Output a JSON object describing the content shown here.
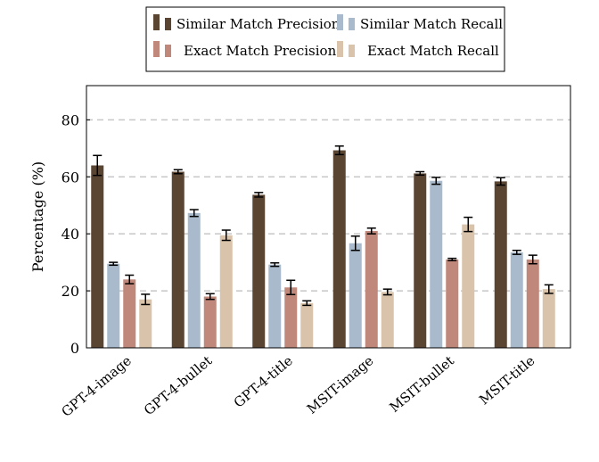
{
  "chart_data": {
    "type": "bar",
    "title": "",
    "xlabel": "",
    "ylabel": "Percentage (%)",
    "ylim": [
      0,
      92
    ],
    "yticks": [
      0,
      20,
      40,
      60,
      80
    ],
    "grid": "horizontal dashed",
    "legend_placement": "top",
    "categories": [
      "GPT-4-image",
      "GPT-4-bullet",
      "GPT-4-title",
      "MSIT-image",
      "MSIT-bullet",
      "MSIT-title"
    ],
    "series": [
      {
        "name": "Similar Match Precision",
        "color": "#5a4533",
        "values": [
          64.0,
          61.8,
          53.7,
          69.3,
          61.2,
          58.4
        ],
        "errors": [
          3.5,
          0.7,
          0.8,
          1.5,
          0.6,
          1.3
        ]
      },
      {
        "name": "Similar Match Recall",
        "color": "#a8bacb",
        "values": [
          29.5,
          47.3,
          29.2,
          36.7,
          58.6,
          33.5
        ],
        "errors": [
          0.5,
          1.2,
          0.6,
          2.5,
          1.2,
          0.7
        ]
      },
      {
        "name": "Exact Match Precision",
        "color": "#c0887b",
        "values": [
          24.0,
          18.0,
          21.2,
          41.0,
          31.0,
          31.0
        ],
        "errors": [
          1.5,
          1.0,
          2.5,
          1.0,
          0.4,
          1.5
        ]
      },
      {
        "name": "Exact Match Recall",
        "color": "#d9c3aa",
        "values": [
          17.0,
          39.5,
          15.7,
          19.6,
          43.3,
          20.6
        ],
        "errors": [
          1.8,
          1.8,
          0.8,
          1.0,
          2.5,
          1.5
        ]
      }
    ]
  }
}
